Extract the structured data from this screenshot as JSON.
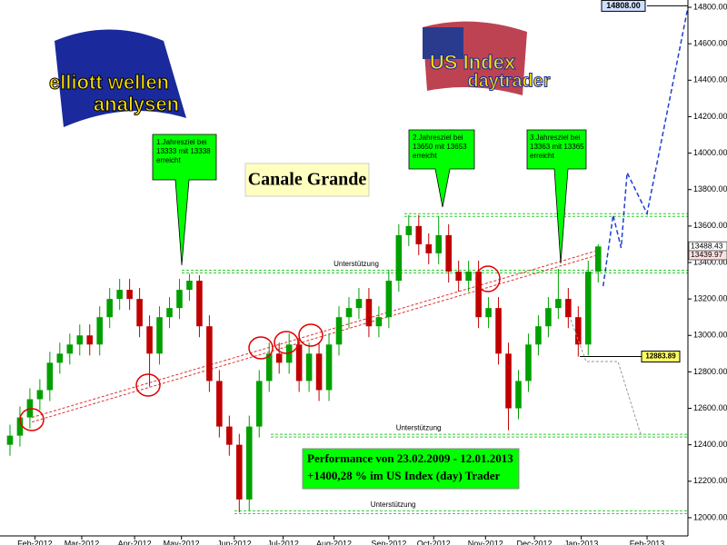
{
  "chart_data": {
    "type": "candlestick",
    "title": "Canale Grande",
    "xlim": [
      -1,
      68
    ],
    "xticks": [
      {
        "value": 2.5,
        "label": "Feb-2012"
      },
      {
        "value": 7.2,
        "label": "Mar-2012"
      },
      {
        "value": 12.5,
        "label": "Apr-2012"
      },
      {
        "value": 17.2,
        "label": "May-2012"
      },
      {
        "value": 22.5,
        "label": "Jun-2012"
      },
      {
        "value": 27.4,
        "label": "Jul-2012"
      },
      {
        "value": 32.5,
        "label": "Aug-2012"
      },
      {
        "value": 38,
        "label": "Sep-2012"
      },
      {
        "value": 42.5,
        "label": "Oct-2012"
      },
      {
        "value": 47.7,
        "label": "Nov-2012"
      },
      {
        "value": 52.6,
        "label": "Dec-2012"
      },
      {
        "value": 57.3,
        "label": "Jan-2013"
      },
      {
        "value": 63.9,
        "label": "Feb-2013"
      }
    ],
    "ylim": [
      11900,
      14840
    ],
    "yticks": [
      {
        "value": 12000,
        "label": "12000.00"
      },
      {
        "value": 12200,
        "label": "12200.00"
      },
      {
        "value": 12400,
        "label": "12400.00"
      },
      {
        "value": 12600,
        "label": "12600.00"
      },
      {
        "value": 12800,
        "label": "12800.00"
      },
      {
        "value": 13000,
        "label": "13000.00"
      },
      {
        "value": 13200,
        "label": "13200.00"
      },
      {
        "value": 13400,
        "label": "13400.00"
      },
      {
        "value": 13600,
        "label": "13600.00"
      },
      {
        "value": 13800,
        "label": "13800.00"
      },
      {
        "value": 14000,
        "label": "14000.00"
      },
      {
        "value": 14200,
        "label": "14200.00"
      },
      {
        "value": 14400,
        "label": "14400.00"
      },
      {
        "value": 14600,
        "label": "14600.00"
      },
      {
        "value": 14800,
        "label": "14800.00"
      }
    ],
    "up_color": "#00a000",
    "down_color": "#c00000",
    "open": [
      12400,
      12450,
      12550,
      12650,
      12700,
      12850,
      12900,
      12950,
      13000,
      12950,
      13100,
      13200,
      13250,
      13200,
      13050,
      12900,
      13100,
      13150,
      13250,
      13300,
      13050,
      12750,
      12500,
      12400,
      12100,
      12500,
      12750,
      12900,
      12850,
      12950,
      12750,
      12900,
      12700,
      12950,
      13100,
      13150,
      13200,
      13050,
      13100,
      13300,
      13550,
      13600,
      13500,
      13450,
      13550,
      13350,
      13300,
      13350,
      13100,
      13150,
      12900,
      12600,
      12750,
      12950,
      13050,
      13150,
      13200,
      13100,
      12950,
      13350
    ],
    "high": [
      12510,
      12610,
      12710,
      12760,
      12910,
      12960,
      13010,
      13060,
      13060,
      13160,
      13260,
      13310,
      13310,
      13260,
      13110,
      13160,
      13210,
      13310,
      13338,
      13330,
      13110,
      12810,
      12560,
      12460,
      12560,
      12810,
      12960,
      12960,
      13010,
      13010,
      12960,
      12960,
      13010,
      13160,
      13210,
      13260,
      13260,
      13160,
      13360,
      13610,
      13660,
      13660,
      13560,
      13653,
      13610,
      13410,
      13410,
      13410,
      13210,
      13210,
      12960,
      12810,
      13010,
      13110,
      13210,
      13365,
      13260,
      13160,
      13410,
      13500
    ],
    "low": [
      12340,
      12390,
      12490,
      12590,
      12640,
      12790,
      12840,
      12890,
      12890,
      12890,
      13040,
      13140,
      13140,
      12990,
      12720,
      12840,
      13040,
      13090,
      13190,
      12990,
      12690,
      12440,
      12340,
      12030,
      12040,
      12440,
      12690,
      12790,
      12790,
      12690,
      12690,
      12640,
      12640,
      12890,
      13040,
      13090,
      12990,
      12990,
      13040,
      13240,
      13490,
      13440,
      13390,
      13390,
      13290,
      13240,
      13240,
      13040,
      13040,
      12840,
      12480,
      12540,
      12690,
      12890,
      12990,
      13090,
      13040,
      12884,
      12890,
      13290
    ],
    "close": [
      12450,
      12550,
      12650,
      12700,
      12850,
      12900,
      12950,
      13000,
      12950,
      13100,
      13200,
      13250,
      13200,
      13050,
      12900,
      13100,
      13150,
      13250,
      13300,
      13050,
      12750,
      12500,
      12400,
      12100,
      12500,
      12750,
      12900,
      12850,
      12950,
      12750,
      12900,
      12700,
      12950,
      13100,
      13150,
      13200,
      13050,
      13100,
      13300,
      13550,
      13600,
      13500,
      13450,
      13550,
      13350,
      13300,
      13350,
      13100,
      13150,
      12900,
      12600,
      12750,
      12950,
      13050,
      13150,
      13200,
      13100,
      12950,
      13350,
      13488
    ],
    "forecast": {
      "color": "#1f3fd0",
      "x": [
        59.5,
        60.5,
        61.3,
        61.9,
        63.9,
        68
      ],
      "values": [
        13270,
        13660,
        13480,
        13893,
        13669,
        14800
      ]
    },
    "trendline": {
      "color": "#e03030",
      "x": [
        2.2,
        59.2
      ],
      "values": [
        12550,
        13470
      ]
    },
    "support_lines": [
      {
        "value": 13350,
        "label": "Unterstützung"
      },
      {
        "value": 12450,
        "label": "Unterstützung"
      },
      {
        "value": 12030,
        "label": "Unterstützung"
      },
      {
        "value": 13660
      }
    ],
    "support_color": "#33cc33",
    "price_labels": [
      {
        "value": 14808,
        "label": "14808.00"
      },
      {
        "value": 13488.43,
        "label": "13488.43"
      },
      {
        "value": 13439.97,
        "label": "13439.97"
      },
      {
        "value": 12883.89,
        "label": "12883.89"
      }
    ],
    "annotations": [
      [
        "1.Jahresziel bei",
        "13333 mit 13338",
        "erreicht"
      ],
      [
        "2.Jahresziel bei",
        "13650 mit 13653",
        "erreicht"
      ],
      [
        "3.Jahresziel bei",
        "13363 mit 13365",
        "erreicht"
      ]
    ],
    "performance": [
      "Performance von 23.02.2009 - 12.01.2013",
      "+1400,28 % im US Index (day) Trader"
    ],
    "logos": [
      "elliott wellen",
      "analysen",
      "US Index",
      "daytrader"
    ]
  }
}
